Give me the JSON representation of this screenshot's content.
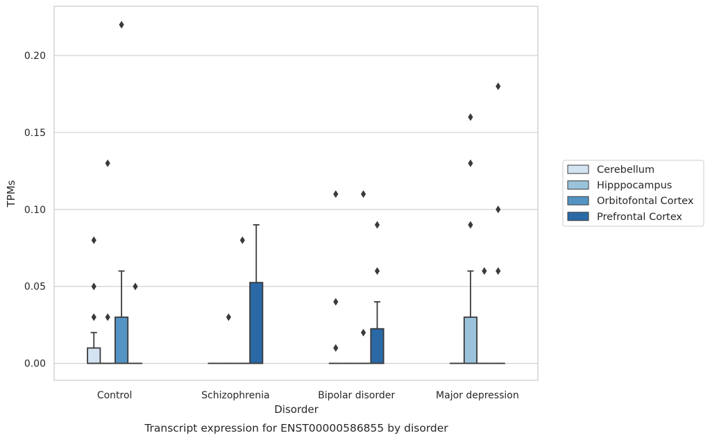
{
  "caption": "Transcript expression for ENST00000586855 by disorder",
  "chart_data": {
    "type": "box",
    "title": "",
    "xlabel": "Disorder",
    "ylabel": "TPMs",
    "ylim": [
      -0.011,
      0.232
    ],
    "yticks": [
      0.0,
      0.05,
      0.1,
      0.15,
      0.2
    ],
    "ytick_labels": [
      "0.00",
      "0.05",
      "0.10",
      "0.15",
      "0.20"
    ],
    "grid": "horizontal",
    "legend_position": "right",
    "categories": [
      "Control",
      "Schizophrenia",
      "Bipolar disorder",
      "Major depression"
    ],
    "series": [
      {
        "name": "Cerebellum",
        "color": "#d3e3f1",
        "boxes": [
          {
            "q1": 0.0,
            "median": 0.0,
            "q3": 0.01,
            "whisker_low": 0.0,
            "whisker_high": 0.02,
            "outliers": [
              0.03,
              0.05,
              0.08
            ]
          },
          {
            "q1": 0.0,
            "median": 0.0,
            "q3": 0.0,
            "whisker_low": 0.0,
            "whisker_high": 0.0,
            "outliers": []
          },
          {
            "q1": 0.0,
            "median": 0.0,
            "q3": 0.0,
            "whisker_low": 0.0,
            "whisker_high": 0.0,
            "outliers": [
              0.01,
              0.04,
              0.11
            ]
          },
          {
            "q1": 0.0,
            "median": 0.0,
            "q3": 0.0,
            "whisker_low": 0.0,
            "whisker_high": 0.0,
            "outliers": []
          }
        ]
      },
      {
        "name": "Hipppocampus",
        "color": "#9ac2db",
        "boxes": [
          {
            "q1": 0.0,
            "median": 0.0,
            "q3": 0.0,
            "whisker_low": 0.0,
            "whisker_high": 0.0,
            "outliers": [
              0.03,
              0.13
            ]
          },
          {
            "q1": 0.0,
            "median": 0.0,
            "q3": 0.0,
            "whisker_low": 0.0,
            "whisker_high": 0.0,
            "outliers": [
              0.03
            ]
          },
          {
            "q1": 0.0,
            "median": 0.0,
            "q3": 0.0,
            "whisker_low": 0.0,
            "whisker_high": 0.0,
            "outliers": []
          },
          {
            "q1": 0.0,
            "median": 0.0,
            "q3": 0.03,
            "whisker_low": 0.0,
            "whisker_high": 0.06,
            "outliers": [
              0.09,
              0.13,
              0.16
            ]
          }
        ]
      },
      {
        "name": "Orbitofontal Cortex",
        "color": "#5494c4",
        "boxes": [
          {
            "q1": 0.0,
            "median": 0.0,
            "q3": 0.03,
            "whisker_low": 0.0,
            "whisker_high": 0.06,
            "outliers": [
              0.22
            ]
          },
          {
            "q1": 0.0,
            "median": 0.0,
            "q3": 0.0,
            "whisker_low": 0.0,
            "whisker_high": 0.0,
            "outliers": [
              0.08
            ]
          },
          {
            "q1": 0.0,
            "median": 0.0,
            "q3": 0.0,
            "whisker_low": 0.0,
            "whisker_high": 0.0,
            "outliers": [
              0.02,
              0.11
            ]
          },
          {
            "q1": 0.0,
            "median": 0.0,
            "q3": 0.0,
            "whisker_low": 0.0,
            "whisker_high": 0.0,
            "outliers": [
              0.06
            ]
          }
        ]
      },
      {
        "name": "Prefrontal Cortex",
        "color": "#2a69a6",
        "boxes": [
          {
            "q1": 0.0,
            "median": 0.0,
            "q3": 0.0,
            "whisker_low": 0.0,
            "whisker_high": 0.0,
            "outliers": [
              0.05
            ]
          },
          {
            "q1": 0.0,
            "median": 0.0,
            "q3": 0.0525,
            "whisker_low": 0.0,
            "whisker_high": 0.09,
            "outliers": []
          },
          {
            "q1": 0.0,
            "median": 0.0,
            "q3": 0.0225,
            "whisker_low": 0.0,
            "whisker_high": 0.04,
            "outliers": [
              0.06,
              0.09
            ]
          },
          {
            "q1": 0.0,
            "median": 0.0,
            "q3": 0.0,
            "whisker_low": 0.0,
            "whisker_high": 0.0,
            "outliers": [
              0.06,
              0.1,
              0.18
            ]
          }
        ]
      }
    ],
    "colors": {
      "frame": "#cccccc",
      "grid": "#cccccc",
      "box_edge": "#3a3a3a"
    }
  }
}
